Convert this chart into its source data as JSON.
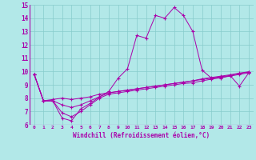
{
  "title": "",
  "xlabel": "Windchill (Refroidissement éolien,°C)",
  "ylabel": "",
  "bg_color": "#b2e8e8",
  "line_color": "#aa00aa",
  "grid_color": "#88cccc",
  "xlim": [
    -0.5,
    23.5
  ],
  "ylim": [
    6,
    15
  ],
  "xticks": [
    0,
    1,
    2,
    3,
    4,
    5,
    6,
    7,
    8,
    9,
    10,
    11,
    12,
    13,
    14,
    15,
    16,
    17,
    18,
    19,
    20,
    21,
    22,
    23
  ],
  "yticks": [
    6,
    7,
    8,
    9,
    10,
    11,
    12,
    13,
    14,
    15
  ],
  "series": [
    [
      9.8,
      7.8,
      7.8,
      6.5,
      6.3,
      7.2,
      7.6,
      8.1,
      8.5,
      9.5,
      10.2,
      12.7,
      12.5,
      14.2,
      14.0,
      14.8,
      14.2,
      13.0,
      10.1,
      9.5,
      9.5,
      9.7,
      8.9,
      9.9
    ],
    [
      9.8,
      7.8,
      7.9,
      8.0,
      7.9,
      8.0,
      8.1,
      8.3,
      8.4,
      8.5,
      8.6,
      8.7,
      8.8,
      8.9,
      9.0,
      9.1,
      9.2,
      9.3,
      9.4,
      9.5,
      9.6,
      9.7,
      9.85,
      9.95
    ],
    [
      9.8,
      7.8,
      7.8,
      7.5,
      7.3,
      7.5,
      7.8,
      8.1,
      8.4,
      8.5,
      8.6,
      8.7,
      8.8,
      8.9,
      9.0,
      9.1,
      9.2,
      9.3,
      9.45,
      9.55,
      9.65,
      9.75,
      9.88,
      9.98
    ],
    [
      9.8,
      7.8,
      7.8,
      6.9,
      6.6,
      7.0,
      7.5,
      8.0,
      8.3,
      8.4,
      8.5,
      8.6,
      8.7,
      8.8,
      8.9,
      9.0,
      9.1,
      9.15,
      9.3,
      9.42,
      9.55,
      9.65,
      9.78,
      9.9
    ]
  ]
}
